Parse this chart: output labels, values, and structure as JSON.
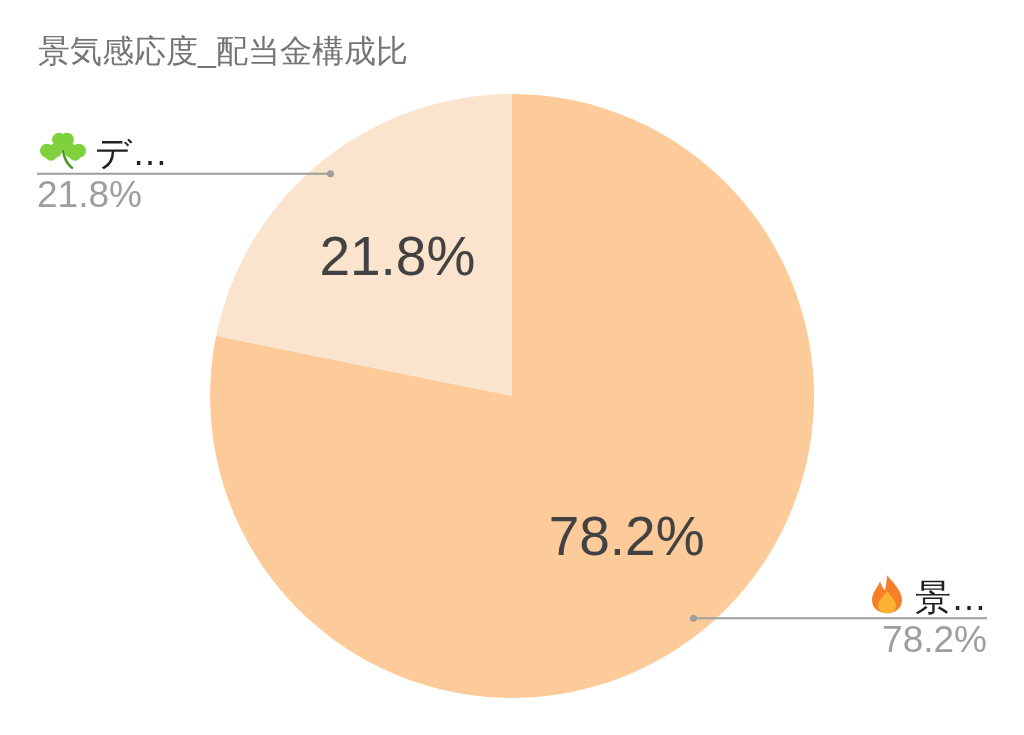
{
  "chart_data": {
    "type": "pie",
    "title": "景気感応度_配当金構成比",
    "categories": [
      "景…",
      "デ…"
    ],
    "values": [
      78.2,
      21.8
    ],
    "colors": [
      "#fdcb9a",
      "#fbe4cd"
    ],
    "value_labels": [
      "78.2%",
      "21.8%"
    ]
  }
}
